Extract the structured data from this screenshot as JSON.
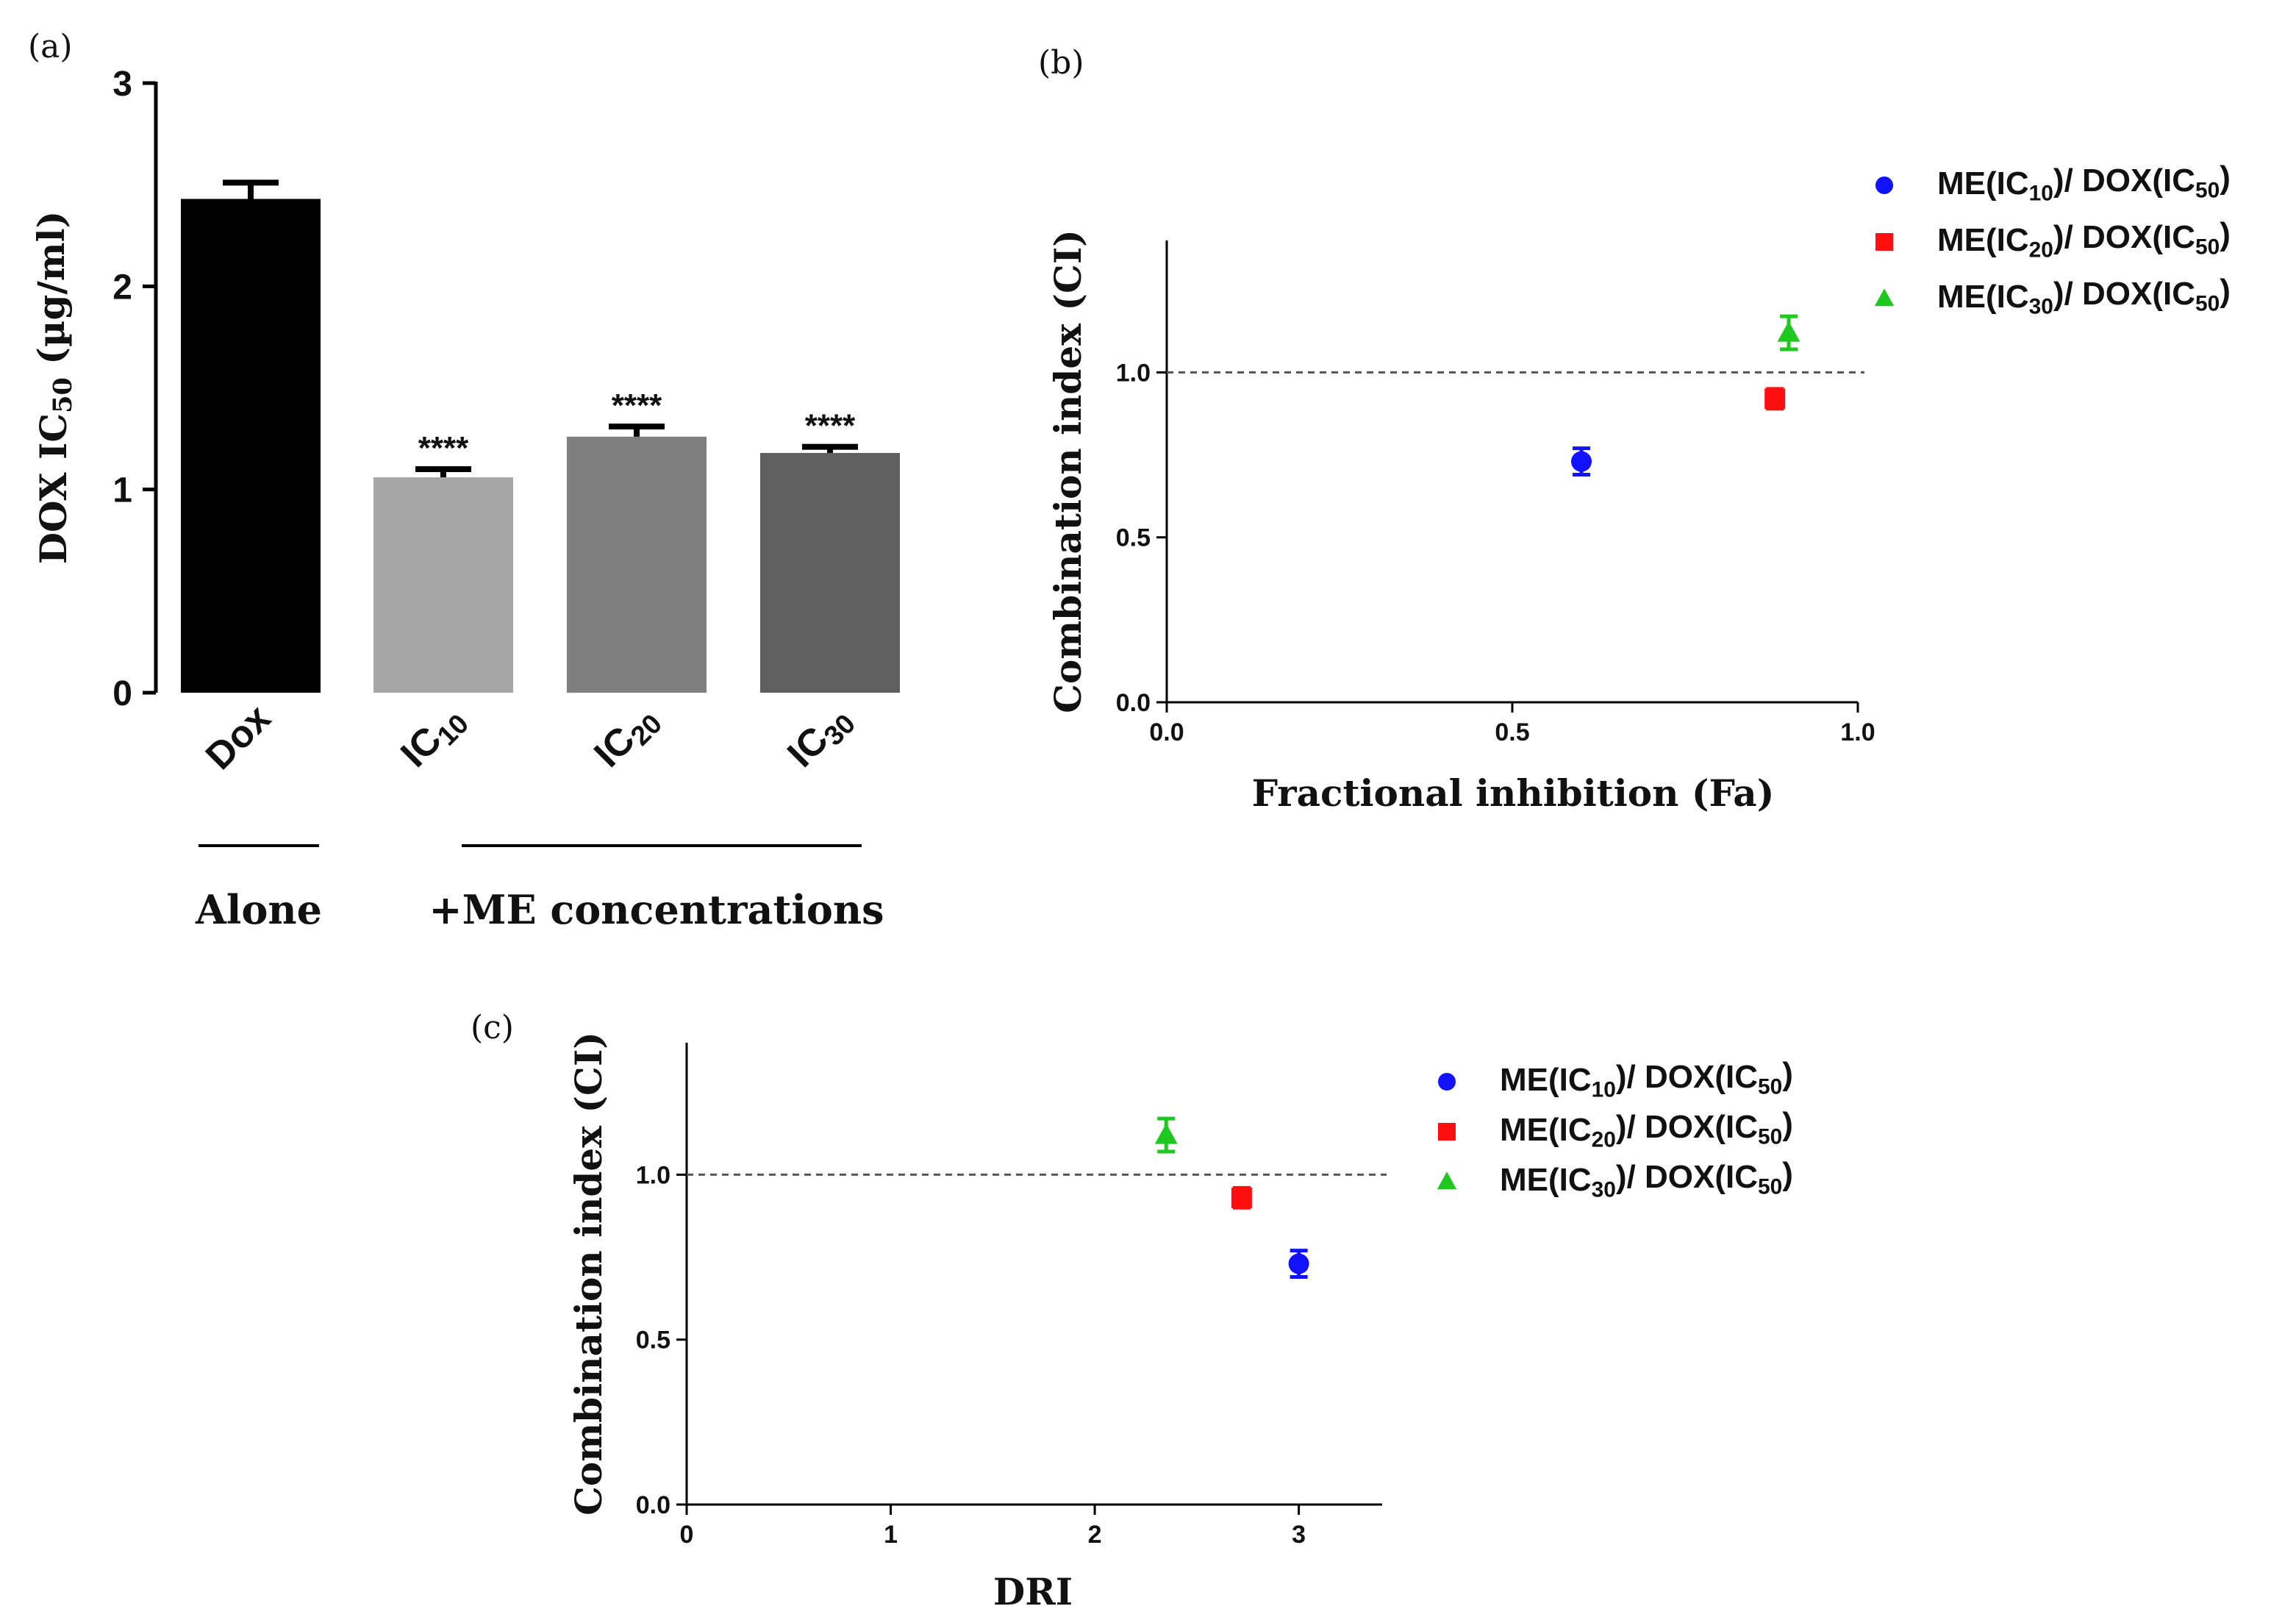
{
  "chart_data": [
    {
      "panel": "(a)",
      "type": "bar",
      "categories": [
        "Dox",
        "IC10",
        "IC20",
        "IC30"
      ],
      "category_labels": [
        {
          "base": "Dox",
          "sub": ""
        },
        {
          "base": "IC",
          "sub": "10"
        },
        {
          "base": "IC",
          "sub": "20"
        },
        {
          "base": "IC",
          "sub": "30"
        }
      ],
      "values": [
        2.43,
        1.06,
        1.26,
        1.18
      ],
      "errors": [
        0.08,
        0.04,
        0.05,
        0.03
      ],
      "colors": [
        "#000000",
        "#a6a6a6",
        "#7f7f7f",
        "#5f5f5f"
      ],
      "significance": [
        "",
        "****",
        "****",
        "****"
      ],
      "ylabel": {
        "base": "DOX IC",
        "sub": "50",
        "tail": " (µg/ml)"
      },
      "ylim": [
        0,
        3
      ],
      "yticks": [
        0,
        1,
        2,
        3
      ],
      "groups": [
        {
          "label": "Alone",
          "categories": [
            "Dox"
          ]
        },
        {
          "label": "+ME concentrations",
          "categories": [
            "IC10",
            "IC20",
            "IC30"
          ]
        }
      ]
    },
    {
      "panel": "(b)",
      "type": "scatter",
      "xlabel": "Fractional inhibition (Fa)",
      "ylabel": "Combination index (CI)",
      "xlim": [
        0,
        1.0
      ],
      "ylim": [
        0,
        1.4
      ],
      "xticks": [
        "0.0",
        "0.5",
        "1.0"
      ],
      "yticks": [
        "0.0",
        "0.5",
        "1.0"
      ],
      "reference_line": 1.0,
      "series": [
        {
          "name": "ME(IC10)/ DOX(IC50)",
          "x": 0.6,
          "y": 0.73,
          "err": 0.04,
          "marker": "circle",
          "color": "#1212ff"
        },
        {
          "name": "ME(IC20)/ DOX(IC50)",
          "x": 0.88,
          "y": 0.92,
          "err": 0.03,
          "marker": "square",
          "color": "#ff0f0f"
        },
        {
          "name": "ME(IC30)/ DOX(IC50)",
          "x": 0.9,
          "y": 1.12,
          "err": 0.05,
          "marker": "triangle",
          "color": "#1ec81e"
        }
      ]
    },
    {
      "panel": "(c)",
      "type": "scatter",
      "xlabel": "DRI",
      "ylabel": "Combination index (CI)",
      "xlim": [
        0,
        3.25
      ],
      "ylim": [
        0,
        1.4
      ],
      "xticks": [
        "0",
        "1",
        "2",
        "3"
      ],
      "yticks": [
        "0.0",
        "0.5",
        "1.0"
      ],
      "reference_line": 1.0,
      "series": [
        {
          "name": "ME(IC10)/ DOX(IC50)",
          "x": 3.0,
          "y": 0.73,
          "err": 0.04,
          "marker": "circle",
          "color": "#1212ff"
        },
        {
          "name": "ME(IC20)/ DOX(IC50)",
          "x": 2.72,
          "y": 0.93,
          "err": 0.03,
          "marker": "square",
          "color": "#ff0f0f"
        },
        {
          "name": "ME(IC30)/ DOX(IC50)",
          "x": 2.35,
          "y": 1.12,
          "err": 0.05,
          "marker": "triangle",
          "color": "#1ec81e"
        }
      ]
    }
  ],
  "legend": [
    {
      "me_sub": "10",
      "dox_sub": "50",
      "marker": "circle",
      "color": "#1212ff"
    },
    {
      "me_sub": "20",
      "dox_sub": "50",
      "marker": "square",
      "color": "#ff0f0f"
    },
    {
      "me_sub": "30",
      "dox_sub": "50",
      "marker": "triangle",
      "color": "#1ec81e"
    }
  ]
}
